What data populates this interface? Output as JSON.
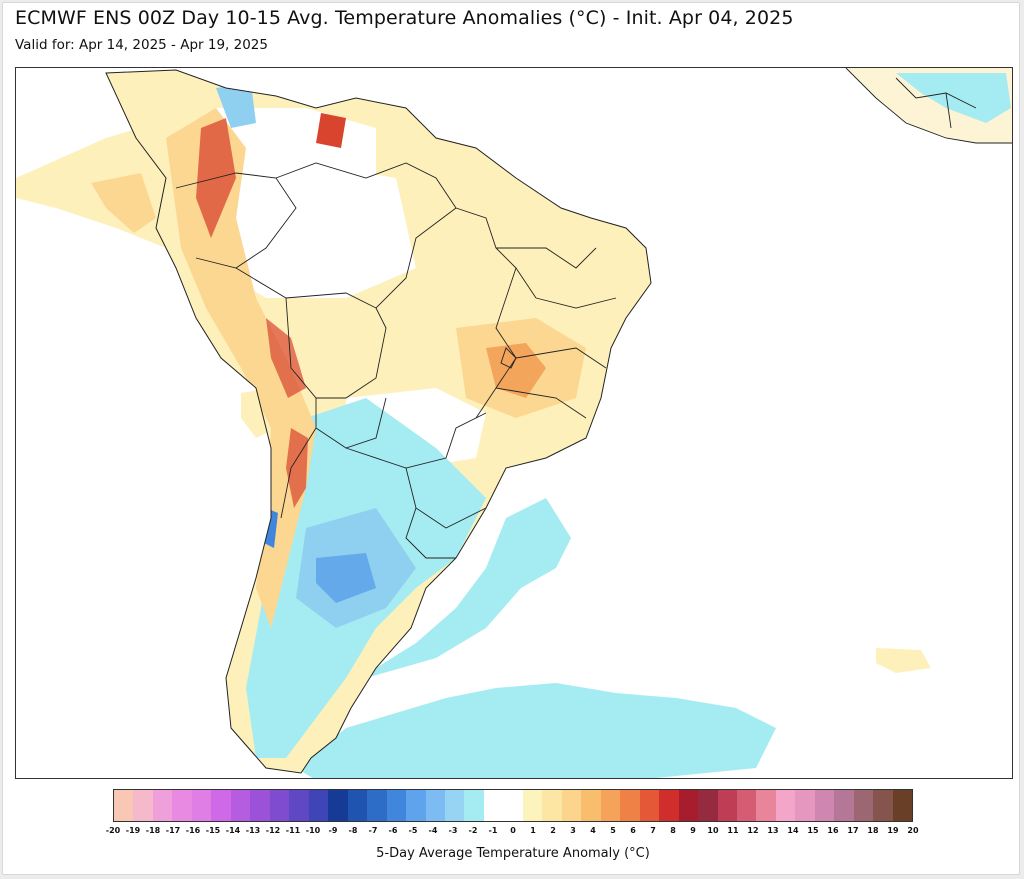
{
  "header": {
    "title": "ECMWF ENS 00Z Day 10-15 Avg. Temperature Anomalies (°C) - Init. Apr 04, 2025",
    "valid": "Valid for: Apr 14, 2025 - Apr 19, 2025"
  },
  "legend": {
    "label": "5-Day Average Temperature Anomaly (°C)",
    "ticks": [
      "-20",
      "-19",
      "-18",
      "-17",
      "-16",
      "-15",
      "-14",
      "-13",
      "-12",
      "-11",
      "-10",
      "-9",
      "-8",
      "-7",
      "-6",
      "-5",
      "-4",
      "-3",
      "-2",
      "-1",
      "0",
      "1",
      "2",
      "3",
      "4",
      "5",
      "6",
      "7",
      "8",
      "9",
      "10",
      "11",
      "12",
      "13",
      "14",
      "15",
      "16",
      "17",
      "18",
      "19",
      "20"
    ],
    "colors": [
      "#f9c8b4",
      "#f6b9cc",
      "#ef9fd9",
      "#e88ae2",
      "#df7fe6",
      "#d069e8",
      "#b65ce0",
      "#9b52d9",
      "#7f4ccf",
      "#6048c4",
      "#3f44b6",
      "#163b96",
      "#1f55b0",
      "#2d6dc7",
      "#3f86dc",
      "#5fa3ec",
      "#7dbcf2",
      "#97d3f3",
      "#a5ecf2",
      "#ffffff",
      "#ffffff",
      "#fdf4bd",
      "#fde5a4",
      "#fcd48c",
      "#f9bd6e",
      "#f5a25a",
      "#ef8046",
      "#e55837",
      "#cf2e2c",
      "#a81d2e",
      "#962a3f",
      "#c03e55",
      "#d45d73",
      "#e9859a",
      "#f3a6c8",
      "#e597c0",
      "#cf86b0",
      "#b57797",
      "#9c6673",
      "#85544c",
      "#6a3f28"
    ]
  },
  "map": {
    "regions": "South America",
    "palette": {
      "ocean": "#ffffff",
      "warm_light": "#fdf0bb",
      "warm_mid": "#fbd792",
      "warm_high": "#f3a55c",
      "hot": "#d9442f",
      "cool_light": "#a5ecf2",
      "cool_mid": "#8fd0f1",
      "cool_deep": "#64a9ea",
      "border": "#222222"
    }
  }
}
